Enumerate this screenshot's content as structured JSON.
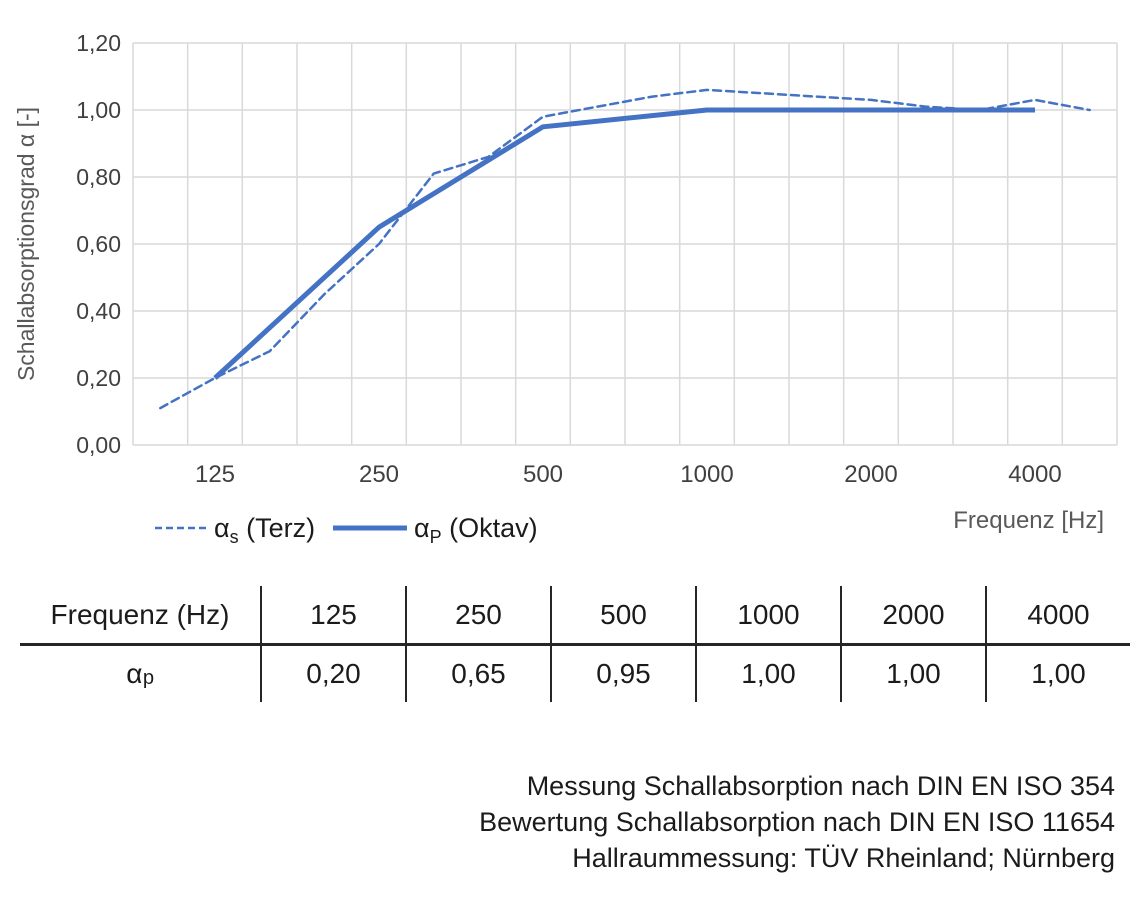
{
  "chart_data": {
    "type": "line",
    "title": "",
    "xlabel": "Frequenz [Hz]",
    "ylabel": "Schallabsorptionsgrad α [-]",
    "x_scale": "log-category-third-octave",
    "categories": [
      100,
      125,
      160,
      200,
      250,
      315,
      400,
      500,
      630,
      800,
      1000,
      1250,
      1600,
      2000,
      2500,
      3150,
      4000,
      5000
    ],
    "x_tick_labels": [
      "125",
      "250",
      "500",
      "1000",
      "2000",
      "4000"
    ],
    "y_tick_labels": [
      "1,20",
      "1,00",
      "0,80",
      "0,60",
      "0,40",
      "0,20",
      "0,00"
    ],
    "ylim": [
      0,
      1.2
    ],
    "grid": true,
    "legend_position": "bottom-left",
    "series": [
      {
        "name": "αs (Terz)",
        "style": "dashed",
        "x": [
          100,
          125,
          160,
          200,
          250,
          315,
          400,
          500,
          630,
          800,
          1000,
          1250,
          1600,
          2000,
          2500,
          3150,
          4000,
          5000
        ],
        "values": [
          0.11,
          0.2,
          0.28,
          0.45,
          0.6,
          0.81,
          0.86,
          0.98,
          1.01,
          1.04,
          1.06,
          1.05,
          1.04,
          1.03,
          1.01,
          1.0,
          1.03,
          1.0
        ]
      },
      {
        "name": "αP (Oktav)",
        "style": "solid",
        "x": [
          125,
          250,
          500,
          1000,
          2000,
          4000
        ],
        "values": [
          0.2,
          0.65,
          0.95,
          1.0,
          1.0,
          1.0
        ]
      }
    ],
    "legend": [
      {
        "base": "α",
        "sub": "s",
        "rest": " (Terz)"
      },
      {
        "base": "α",
        "sub": "P",
        "rest": " (Oktav)"
      }
    ],
    "colors": {
      "line_blue": "#4472C4",
      "gridline": "#D9D9D9",
      "tick_text": "#404040",
      "axis_title_text": "#595959"
    }
  },
  "table": {
    "header": [
      "Frequenz (Hz)",
      "125",
      "250",
      "500",
      "1000",
      "2000",
      "4000"
    ],
    "row_label_base": "α",
    "row_label_sub": "p",
    "values": [
      "0,20",
      "0,65",
      "0,95",
      "1,00",
      "1,00",
      "1,00"
    ]
  },
  "notes": {
    "line1": "Messung Schallabsorption nach DIN EN ISO 354",
    "line2": "Bewertung Schallabsorption nach DIN EN ISO 11654",
    "line3": "Hallraummessung: TÜV Rheinland; Nürnberg"
  }
}
